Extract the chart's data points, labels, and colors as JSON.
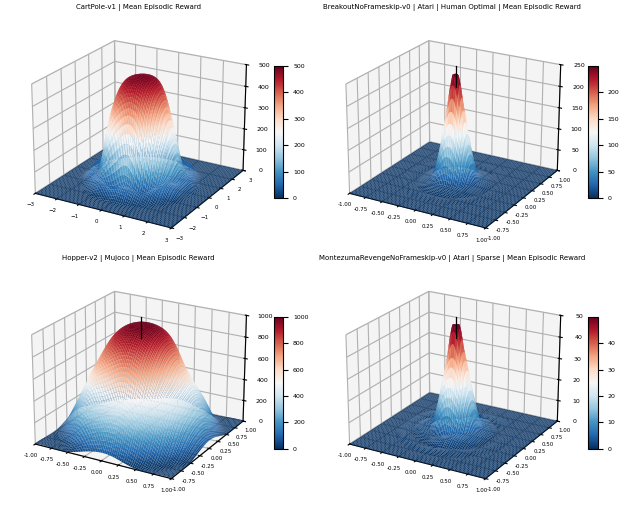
{
  "subplots": [
    {
      "title": "CartPole-v1 | Mean Episodic Reward",
      "xlim": [
        -3,
        3
      ],
      "ylim": [
        -3,
        3
      ],
      "zlim": [
        0,
        500
      ],
      "cbar_ticks": [
        0,
        100,
        200,
        300,
        400,
        500
      ],
      "cbar_labels": [
        "",
        "100",
        "200",
        "300",
        "400",
        "500"
      ],
      "peak": 500,
      "shape": "cartpole",
      "has_spike": false,
      "xticks": [
        -3,
        -2,
        -1,
        0,
        1,
        2,
        3
      ],
      "yticks": [
        -3,
        -2,
        -1,
        0,
        1,
        2,
        3
      ],
      "elev": 22,
      "azim": -60
    },
    {
      "title": "BreakoutNoFrameskip-v0 | Atari | Human Optimal | Mean Episodic Reward",
      "xlim": [
        -1,
        1
      ],
      "ylim": [
        -1,
        1
      ],
      "zlim": [
        0,
        250
      ],
      "cbar_ticks": [
        0,
        50,
        100,
        150,
        200
      ],
      "peak": 250,
      "shape": "narrow_spike",
      "has_spike": true,
      "xticks": [
        -1.0,
        -0.75,
        -0.5,
        -0.25,
        0.0,
        0.25,
        0.5,
        0.75,
        1.0
      ],
      "yticks": [
        -1.0,
        -0.75,
        -0.5,
        -0.25,
        0.0,
        0.25,
        0.5,
        0.75,
        1.0
      ],
      "elev": 22,
      "azim": -60
    },
    {
      "title": "Hopper-v2 | Mujoco | Mean Episodic Reward",
      "xlim": [
        -1,
        1
      ],
      "ylim": [
        -1,
        1
      ],
      "zlim": [
        0,
        1000
      ],
      "cbar_ticks": [
        0,
        200,
        400,
        600,
        800,
        1000
      ],
      "peak": 1000,
      "shape": "hopper",
      "has_spike": true,
      "xticks": [
        -1.0,
        -0.75,
        -0.5,
        -0.25,
        0.0,
        0.25,
        0.5,
        0.75,
        1.0
      ],
      "yticks": [
        -1.0,
        -0.75,
        -0.5,
        -0.25,
        0.0,
        0.25,
        0.5,
        0.75,
        1.0
      ],
      "elev": 22,
      "azim": -60
    },
    {
      "title": "MontezumaRevengeNoFrameskip-v0 | Atari | Sparse | Mean Episodic Reward",
      "xlim": [
        -1,
        1
      ],
      "ylim": [
        -1,
        1
      ],
      "zlim": [
        0,
        50
      ],
      "cbar_ticks": [
        0,
        10,
        20,
        30,
        40
      ],
      "peak": 50,
      "shape": "montezuma",
      "has_spike": true,
      "xticks": [
        -1.0,
        -0.75,
        -0.5,
        -0.25,
        0.0,
        0.25,
        0.5,
        0.75,
        1.0
      ],
      "yticks": [
        -1.0,
        -0.75,
        -0.5,
        -0.25,
        0.0,
        0.25,
        0.5,
        0.75,
        1.0
      ],
      "elev": 22,
      "azim": -60
    }
  ],
  "cmap": "RdBu_r",
  "n_grid": 80
}
